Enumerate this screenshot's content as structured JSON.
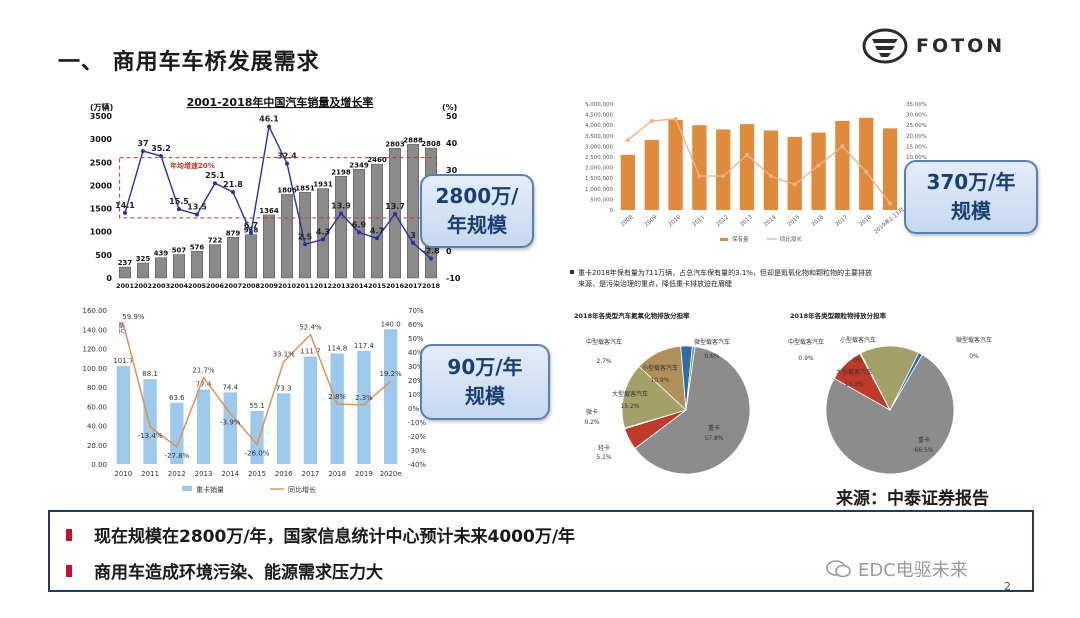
{
  "slide": {
    "title": "一、 商用车车桥发展需求",
    "logo_text": "FOTON",
    "source": "来源：中泰证券报告",
    "bullets": [
      "现在规模在2800万/年，国家信息统计中心预计未来4000万/年",
      "商用车造成环境污染、能源需求压力大"
    ],
    "watermark": "EDC电驱未来",
    "page_number": "2",
    "callouts": {
      "c1": [
        "2800万/",
        "年规模"
      ],
      "c2": [
        "370万/年",
        "规模"
      ],
      "c3": [
        "90万/年",
        "规模"
      ]
    },
    "colors": {
      "accent_red": "#c8102e",
      "callout_border": "#5a7fb4",
      "frame": "#1f3a66"
    }
  },
  "chart_data": [
    {
      "type": "bar",
      "title": "2001-2018年中国汽车销量及增长率",
      "ylabel_left": "(万辆)",
      "ylabel_right": "(%)",
      "annotation": "年均增速20%",
      "categories": [
        "2001",
        "2002",
        "2003",
        "2004",
        "2005",
        "2006",
        "2007",
        "2008",
        "2009",
        "2010",
        "2011",
        "2012",
        "2013",
        "2014",
        "2015",
        "2016",
        "2017",
        "2018"
      ],
      "series": [
        {
          "name": "销量",
          "values": [
            237,
            325,
            439,
            507,
            576,
            722,
            879,
            938,
            1364,
            1806,
            1851,
            1931,
            2198,
            2349,
            2460,
            2803,
            2888,
            2808
          ]
        },
        {
          "name": "增长率",
          "values": [
            14.1,
            37,
            35.2,
            15.5,
            13.5,
            25.1,
            21.8,
            6.7,
            46.1,
            32.4,
            2.5,
            4.3,
            13.9,
            6.9,
            4.7,
            13.7,
            3,
            -2.8
          ]
        }
      ],
      "value_labels_growth": [
        "14.1",
        "37",
        "35.2",
        "15.5",
        "13.5",
        "25.1",
        "21.8",
        "6.7",
        "46.1",
        "32.4",
        "2.5",
        "4.3",
        "13.9",
        "6.9",
        "4.7",
        "13.7",
        "3",
        "-2.8"
      ],
      "ylim_left": [
        0,
        3500
      ],
      "ylim_right": [
        -10,
        50
      ],
      "yticks_left": [
        "0",
        "500",
        "1000",
        "1500",
        "2000",
        "2500",
        "3000",
        "3500"
      ],
      "yticks_right": [
        "-10",
        "0",
        "10",
        "20",
        "30",
        "40",
        "50"
      ]
    },
    {
      "type": "bar",
      "legend": [
        "保有量",
        "同比增长"
      ],
      "categories": [
        "2008",
        "2009",
        "2010",
        "2011",
        "2012",
        "2013",
        "2014",
        "2015",
        "2016",
        "2017",
        "2018",
        "2019年1-11月"
      ],
      "series": [
        {
          "name": "保有量",
          "values": [
            2600000,
            3300000,
            4250000,
            4000000,
            3800000,
            4050000,
            3750000,
            3450000,
            3650000,
            4200000,
            4350000,
            3850000
          ]
        },
        {
          "name": "同比增长",
          "values": [
            18,
            27,
            28,
            1,
            1,
            11,
            1,
            -3,
            6,
            15,
            3,
            -12
          ]
        }
      ],
      "ylim_left": [
        0,
        5000000
      ],
      "ylim_right": [
        -15,
        35
      ],
      "yticks_left": [
        "0",
        "500,000",
        "1,000,000",
        "1,500,000",
        "2,000,000",
        "2,500,000",
        "3,000,000",
        "3,500,000",
        "4,000,000",
        "4,500,000",
        "5,000,000"
      ],
      "yticks_right": [
        "-15.00%",
        "-10.00%",
        "-5.00%",
        "0.00%",
        "5.00%",
        "10.00%",
        "15.00%",
        "20.00%",
        "25.00%",
        "30.00%",
        "35.00%"
      ]
    },
    {
      "type": "bar",
      "ylabel": "万辆",
      "legend": [
        "重卡销量",
        "同比增长"
      ],
      "categories": [
        "2010",
        "2011",
        "2012",
        "2013",
        "2014",
        "2015",
        "2016",
        "2017",
        "2018",
        "2019",
        "2020e"
      ],
      "series": [
        {
          "name": "重卡销量",
          "values": [
            101.7,
            88.1,
            63.6,
            77.4,
            74.4,
            55.1,
            73.3,
            111.7,
            114.8,
            117.4,
            140.0
          ]
        },
        {
          "name": "同比增长",
          "values": [
            59.9,
            -13.4,
            -27.8,
            21.7,
            -3.9,
            -26.0,
            33.1,
            52.4,
            2.8,
            2.3,
            19.2
          ]
        }
      ],
      "bar_labels": [
        "101.7",
        "88.1",
        "63.6",
        "77.4",
        "74.4",
        "55.1",
        "73.3",
        "111.7",
        "114.8",
        "117.4",
        "140.0"
      ],
      "growth_labels": [
        "59.9%",
        "-13.4%",
        "-27.8%",
        "21.7%",
        "-3.9%",
        "-26.0%",
        "33.1%",
        "52.4%",
        "2.8%",
        "2.3%",
        "19.2%"
      ],
      "ylim_left": [
        0,
        160
      ],
      "ylim_right": [
        -40,
        70
      ],
      "yticks_left": [
        "0.00",
        "20.00",
        "40.00",
        "60.00",
        "80.00",
        "100.00",
        "120.00",
        "140.00",
        "160.00"
      ],
      "yticks_right": [
        "-40%",
        "-30%",
        "-20%",
        "-10%",
        "0%",
        "10%",
        "20%",
        "30%",
        "40%",
        "50%",
        "60%",
        "70%"
      ]
    },
    {
      "type": "pie",
      "title": "2018年各类型汽车氮氧化物排放分担率",
      "note": "重卡2018年保有量为711万辆，占总汽车保有量的3.1%，但却是氮氧化物和颗粒物的主要排放来源，是污染治理的重点，降低重卡排放迫在眉睫",
      "slices": [
        {
          "label": "重卡",
          "value": 57.8,
          "color": "#8c8c8c"
        },
        {
          "label": "轻卡",
          "value": 5.1,
          "color": "#c0392b"
        },
        {
          "label": "微卡",
          "value": 0.2,
          "color": "#3b82c4"
        },
        {
          "label": "大型载客汽车",
          "value": 15.2,
          "color": "#a3a06a"
        },
        {
          "label": "小型载客汽车",
          "value": 10.9,
          "color": "#b08f5a"
        },
        {
          "label": "中型载客汽车",
          "value": 2.7,
          "color": "#2f6ea5"
        },
        {
          "label": "微型载客汽车",
          "value": 0.6,
          "color": "#6b9a6b"
        }
      ]
    },
    {
      "type": "pie",
      "title": "2018年各类型颗粒物排放分担率",
      "slices": [
        {
          "label": "重卡",
          "value": 66.5,
          "color": "#8c8c8c"
        },
        {
          "label": "轻卡",
          "value": 8.0,
          "color": "#c0392b"
        },
        {
          "label": "微卡",
          "value": 0.2,
          "color": "#3b82c4"
        },
        {
          "label": "大型载客汽车",
          "value": 13.3,
          "color": "#a3a06a"
        },
        {
          "label": "小型载客汽车",
          "value": 0.0,
          "color": "#b08f5a"
        },
        {
          "label": "中型载客汽车",
          "value": 0.9,
          "color": "#2f6ea5"
        },
        {
          "label": "微型载客汽车",
          "value": 0.0,
          "color": "#6b9a6b"
        }
      ]
    }
  ]
}
